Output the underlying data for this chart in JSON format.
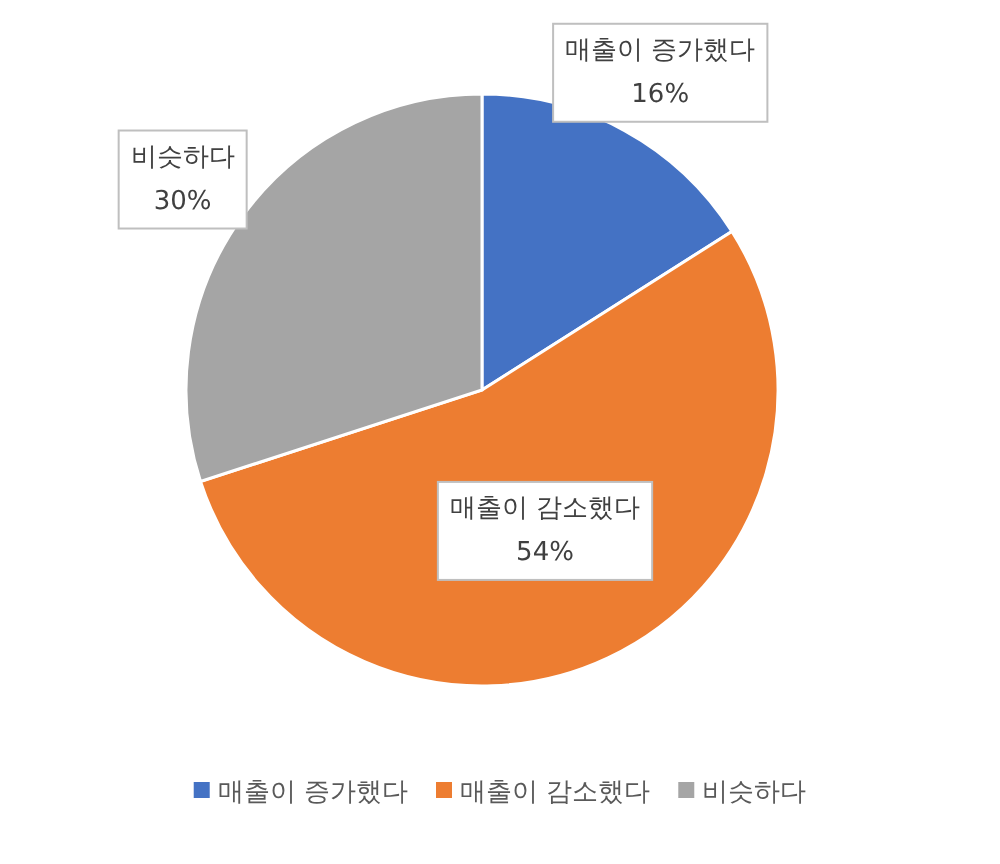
{
  "chart_data": {
    "type": "pie",
    "categories": [
      "매출이 증가했다",
      "매출이 감소했다",
      "비슷하다"
    ],
    "values": [
      16,
      54,
      30
    ],
    "colors": [
      "#4472c4",
      "#ed7d31",
      "#a5a5a5"
    ],
    "value_labels": [
      "16%",
      "54%",
      "30%"
    ],
    "legend": "bottom"
  }
}
